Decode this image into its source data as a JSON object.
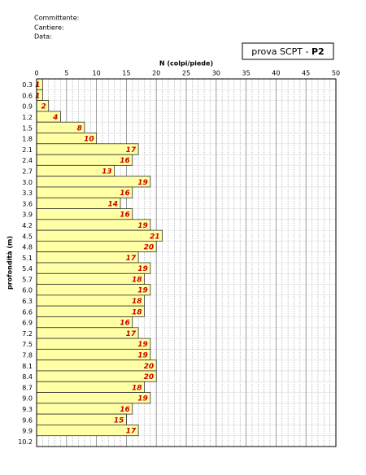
{
  "header": {
    "committente": "Committente:",
    "cantiere": "Cantiere:",
    "data": "Data:"
  },
  "test_box": {
    "label": "prova SCPT -",
    "id": "P2"
  },
  "chart_data": {
    "type": "barh",
    "x_label": "N (colpi/piede)",
    "y_label": "profondità (m)",
    "categories": [
      "0.3",
      "0.6",
      "0.9",
      "1.2",
      "1.5",
      "1.8",
      "2.1",
      "2.4",
      "2.7",
      "3.0",
      "3.3",
      "3.6",
      "3.9",
      "4.2",
      "4.5",
      "4.8",
      "5.1",
      "5.4",
      "5.7",
      "6.0",
      "6.3",
      "6.6",
      "6.9",
      "7.2",
      "7.5",
      "7.8",
      "8.1",
      "8.4",
      "8.7",
      "9.0",
      "9.3",
      "9.6",
      "9.9",
      "10.2"
    ],
    "values": [
      1,
      1,
      2,
      4,
      8,
      10,
      17,
      16,
      13,
      19,
      16,
      14,
      16,
      19,
      21,
      20,
      17,
      19,
      18,
      19,
      18,
      18,
      16,
      17,
      19,
      19,
      20,
      20,
      18,
      19,
      16,
      15,
      17,
      null
    ],
    "color": "#ffffa6",
    "label_color": "#cc0000",
    "xlim": [
      0,
      50
    ],
    "xticks": [
      0,
      5,
      10,
      15,
      20,
      25,
      30,
      35,
      40,
      45,
      50
    ],
    "grid": true
  }
}
